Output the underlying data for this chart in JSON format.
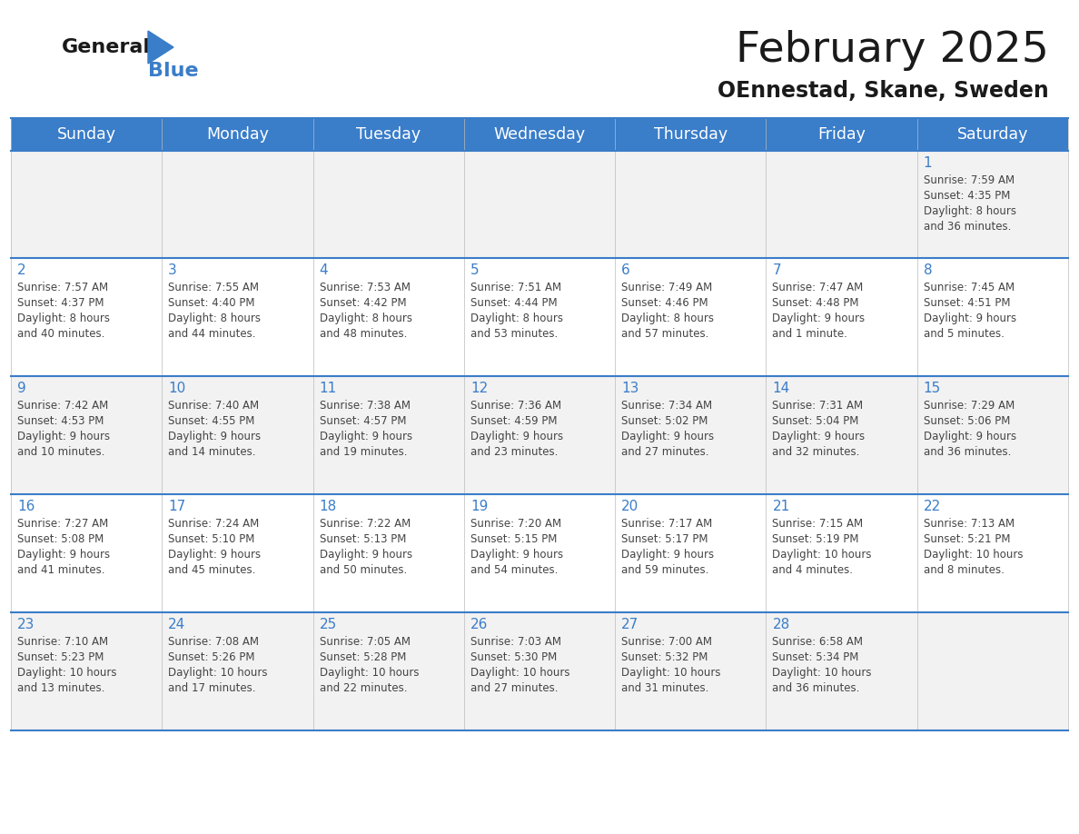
{
  "title": "February 2025",
  "subtitle": "OEnnestad, Skane, Sweden",
  "header_bg_color": "#3A7DC9",
  "header_text_color": "#FFFFFF",
  "day_names": [
    "Sunday",
    "Monday",
    "Tuesday",
    "Wednesday",
    "Thursday",
    "Friday",
    "Saturday"
  ],
  "row_bg_colors": [
    "#F2F2F2",
    "#FFFFFF"
  ],
  "cell_border_color": "#3A7DC9",
  "number_color": "#3A7DC9",
  "text_color": "#444444",
  "logo_general_color": "#1A1A1A",
  "logo_blue_color": "#3A7DC9",
  "days": [
    {
      "date": 1,
      "row": 0,
      "col": 6,
      "sunrise": "7:59 AM",
      "sunset": "4:35 PM",
      "daylight": "8 hours and 36 minutes."
    },
    {
      "date": 2,
      "row": 1,
      "col": 0,
      "sunrise": "7:57 AM",
      "sunset": "4:37 PM",
      "daylight": "8 hours and 40 minutes."
    },
    {
      "date": 3,
      "row": 1,
      "col": 1,
      "sunrise": "7:55 AM",
      "sunset": "4:40 PM",
      "daylight": "8 hours and 44 minutes."
    },
    {
      "date": 4,
      "row": 1,
      "col": 2,
      "sunrise": "7:53 AM",
      "sunset": "4:42 PM",
      "daylight": "8 hours and 48 minutes."
    },
    {
      "date": 5,
      "row": 1,
      "col": 3,
      "sunrise": "7:51 AM",
      "sunset": "4:44 PM",
      "daylight": "8 hours and 53 minutes."
    },
    {
      "date": 6,
      "row": 1,
      "col": 4,
      "sunrise": "7:49 AM",
      "sunset": "4:46 PM",
      "daylight": "8 hours and 57 minutes."
    },
    {
      "date": 7,
      "row": 1,
      "col": 5,
      "sunrise": "7:47 AM",
      "sunset": "4:48 PM",
      "daylight": "9 hours and 1 minute."
    },
    {
      "date": 8,
      "row": 1,
      "col": 6,
      "sunrise": "7:45 AM",
      "sunset": "4:51 PM",
      "daylight": "9 hours and 5 minutes."
    },
    {
      "date": 9,
      "row": 2,
      "col": 0,
      "sunrise": "7:42 AM",
      "sunset": "4:53 PM",
      "daylight": "9 hours and 10 minutes."
    },
    {
      "date": 10,
      "row": 2,
      "col": 1,
      "sunrise": "7:40 AM",
      "sunset": "4:55 PM",
      "daylight": "9 hours and 14 minutes."
    },
    {
      "date": 11,
      "row": 2,
      "col": 2,
      "sunrise": "7:38 AM",
      "sunset": "4:57 PM",
      "daylight": "9 hours and 19 minutes."
    },
    {
      "date": 12,
      "row": 2,
      "col": 3,
      "sunrise": "7:36 AM",
      "sunset": "4:59 PM",
      "daylight": "9 hours and 23 minutes."
    },
    {
      "date": 13,
      "row": 2,
      "col": 4,
      "sunrise": "7:34 AM",
      "sunset": "5:02 PM",
      "daylight": "9 hours and 27 minutes."
    },
    {
      "date": 14,
      "row": 2,
      "col": 5,
      "sunrise": "7:31 AM",
      "sunset": "5:04 PM",
      "daylight": "9 hours and 32 minutes."
    },
    {
      "date": 15,
      "row": 2,
      "col": 6,
      "sunrise": "7:29 AM",
      "sunset": "5:06 PM",
      "daylight": "9 hours and 36 minutes."
    },
    {
      "date": 16,
      "row": 3,
      "col": 0,
      "sunrise": "7:27 AM",
      "sunset": "5:08 PM",
      "daylight": "9 hours and 41 minutes."
    },
    {
      "date": 17,
      "row": 3,
      "col": 1,
      "sunrise": "7:24 AM",
      "sunset": "5:10 PM",
      "daylight": "9 hours and 45 minutes."
    },
    {
      "date": 18,
      "row": 3,
      "col": 2,
      "sunrise": "7:22 AM",
      "sunset": "5:13 PM",
      "daylight": "9 hours and 50 minutes."
    },
    {
      "date": 19,
      "row": 3,
      "col": 3,
      "sunrise": "7:20 AM",
      "sunset": "5:15 PM",
      "daylight": "9 hours and 54 minutes."
    },
    {
      "date": 20,
      "row": 3,
      "col": 4,
      "sunrise": "7:17 AM",
      "sunset": "5:17 PM",
      "daylight": "9 hours and 59 minutes."
    },
    {
      "date": 21,
      "row": 3,
      "col": 5,
      "sunrise": "7:15 AM",
      "sunset": "5:19 PM",
      "daylight": "10 hours and 4 minutes."
    },
    {
      "date": 22,
      "row": 3,
      "col": 6,
      "sunrise": "7:13 AM",
      "sunset": "5:21 PM",
      "daylight": "10 hours and 8 minutes."
    },
    {
      "date": 23,
      "row": 4,
      "col": 0,
      "sunrise": "7:10 AM",
      "sunset": "5:23 PM",
      "daylight": "10 hours and 13 minutes."
    },
    {
      "date": 24,
      "row": 4,
      "col": 1,
      "sunrise": "7:08 AM",
      "sunset": "5:26 PM",
      "daylight": "10 hours and 17 minutes."
    },
    {
      "date": 25,
      "row": 4,
      "col": 2,
      "sunrise": "7:05 AM",
      "sunset": "5:28 PM",
      "daylight": "10 hours and 22 minutes."
    },
    {
      "date": 26,
      "row": 4,
      "col": 3,
      "sunrise": "7:03 AM",
      "sunset": "5:30 PM",
      "daylight": "10 hours and 27 minutes."
    },
    {
      "date": 27,
      "row": 4,
      "col": 4,
      "sunrise": "7:00 AM",
      "sunset": "5:32 PM",
      "daylight": "10 hours and 31 minutes."
    },
    {
      "date": 28,
      "row": 4,
      "col": 5,
      "sunrise": "6:58 AM",
      "sunset": "5:34 PM",
      "daylight": "10 hours and 36 minutes."
    }
  ]
}
